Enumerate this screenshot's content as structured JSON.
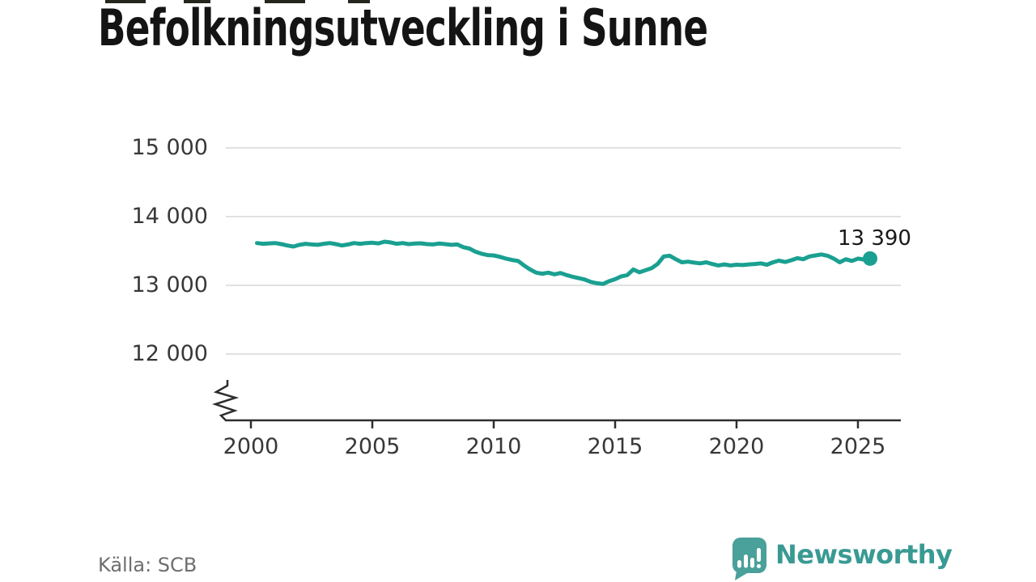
{
  "title": "Befolkningsutveckling i Sunne",
  "source": "Källa: SCB",
  "branding": {
    "name": "Newsworthy",
    "logo_icon": "speech-bubble-bar-chart-icon"
  },
  "colors": {
    "background": "#ffffff",
    "title_text": "#141414",
    "tick_text": "#383838",
    "end_label_text": "#191919",
    "source_text": "#6e6e6e",
    "brand_text": "#399a93",
    "logo_fill": "#4aa09a",
    "logo_glyph": "#ffffff",
    "line": "#1aa091",
    "grid": "#e1e1e1",
    "axis": "#2e2e2e",
    "artifact": "#26261f"
  },
  "chart_data": {
    "type": "line",
    "title": "Befolkningsutveckling i Sunne",
    "xlabel": "",
    "ylabel": "",
    "grid": "horizontal",
    "axis_break": true,
    "ylim_visible": [
      12000,
      15000
    ],
    "xlim": [
      1999,
      2026.8
    ],
    "x_ticks": [
      2000,
      2005,
      2010,
      2015,
      2020,
      2025
    ],
    "y_ticks": [
      {
        "value": 15000,
        "label": "15 000"
      },
      {
        "value": 14000,
        "label": "14 000"
      },
      {
        "value": 13000,
        "label": "13 000"
      },
      {
        "value": 12000,
        "label": "12 000"
      }
    ],
    "last_point_label": "13 390",
    "last_point_value": 13390,
    "series": [
      {
        "x_start": 2000.25,
        "x_step": 0.25,
        "values": [
          13615,
          13605,
          13610,
          13615,
          13600,
          13580,
          13565,
          13590,
          13605,
          13595,
          13590,
          13605,
          13615,
          13600,
          13580,
          13595,
          13615,
          13605,
          13615,
          13620,
          13610,
          13635,
          13625,
          13605,
          13615,
          13600,
          13608,
          13612,
          13600,
          13595,
          13608,
          13600,
          13590,
          13595,
          13555,
          13535,
          13490,
          13460,
          13440,
          13435,
          13415,
          13390,
          13370,
          13355,
          13290,
          13230,
          13185,
          13170,
          13185,
          13160,
          13180,
          13150,
          13125,
          13105,
          13085,
          13050,
          13030,
          13020,
          13060,
          13090,
          13130,
          13150,
          13230,
          13190,
          13220,
          13250,
          13310,
          13420,
          13430,
          13380,
          13335,
          13345,
          13330,
          13320,
          13335,
          13310,
          13290,
          13305,
          13290,
          13300,
          13295,
          13305,
          13310,
          13320,
          13300,
          13335,
          13360,
          13340,
          13365,
          13395,
          13380,
          13420,
          13435,
          13450,
          13430,
          13390,
          13335,
          13380,
          13355,
          13390,
          13375,
          13390
        ]
      }
    ]
  }
}
